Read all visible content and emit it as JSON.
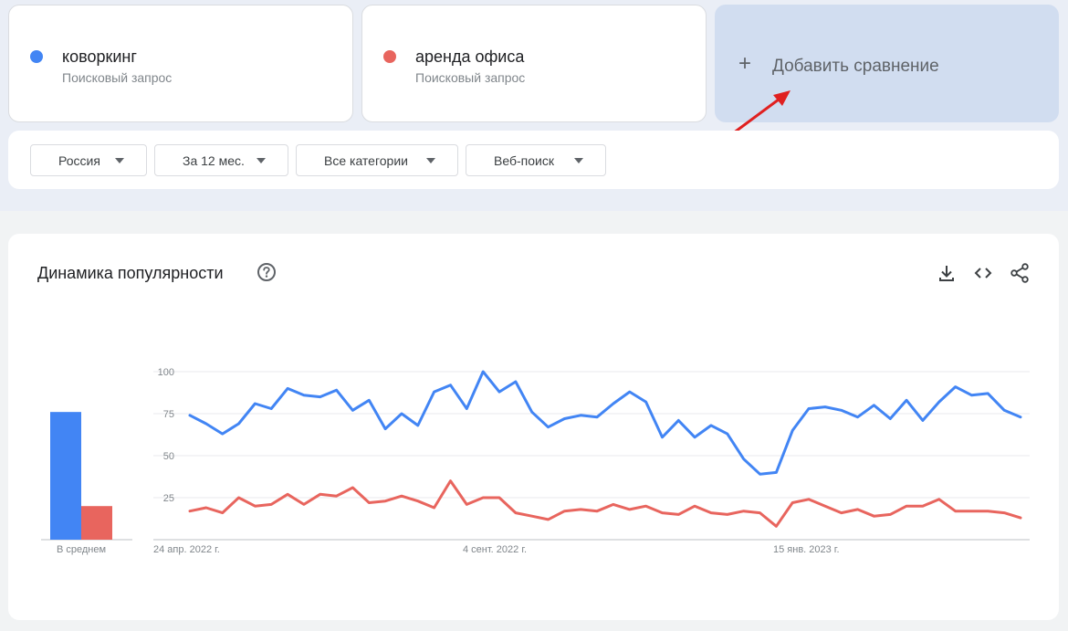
{
  "terms": [
    {
      "label": "коворкинг",
      "sublabel": "Поисковый запрос",
      "color": "#4285f4"
    },
    {
      "label": "аренда офиса",
      "sublabel": "Поисковый запрос",
      "color": "#e8655e"
    }
  ],
  "add_comparison": {
    "plus": "+",
    "label": "Добавить сравнение"
  },
  "filters": {
    "region": "Россия",
    "period": "За 12 мес.",
    "category": "Все категории",
    "search_type": "Веб-поиск"
  },
  "chart_panel": {
    "title": "Динамика популярности",
    "icons": [
      "help-icon",
      "download-icon",
      "embed-icon",
      "share-icon"
    ]
  },
  "colors": {
    "blue": "#4285f4",
    "red": "#e8655e",
    "annotation": "#e02020"
  },
  "chart_data": [
    {
      "type": "bar",
      "categories": [
        "В среднем"
      ],
      "series": [
        {
          "name": "коворкинг",
          "values": [
            76
          ]
        },
        {
          "name": "аренда офиса",
          "values": [
            20
          ]
        }
      ],
      "ylim": [
        0,
        100
      ],
      "xlabel": "В среднем"
    },
    {
      "type": "line",
      "x_tick_labels": [
        "24 апр. 2022 г.",
        "4 сент. 2022 г.",
        "15 янв. 2023 г."
      ],
      "y_ticks": [
        "100",
        "75",
        "50",
        "25"
      ],
      "ylim": [
        0,
        100
      ],
      "grid": true,
      "series": [
        {
          "name": "коворкинг",
          "values": [
            74,
            69,
            63,
            69,
            81,
            78,
            90,
            86,
            85,
            89,
            77,
            83,
            66,
            75,
            68,
            88,
            92,
            78,
            100,
            88,
            94,
            76,
            67,
            72,
            74,
            73,
            81,
            88,
            82,
            61,
            71,
            61,
            68,
            63,
            48,
            39,
            40,
            65,
            78,
            79,
            77,
            73,
            80,
            72,
            83,
            71,
            82,
            91,
            86,
            87,
            77,
            73
          ]
        },
        {
          "name": "аренда офиса",
          "values": [
            17,
            19,
            16,
            25,
            20,
            21,
            27,
            21,
            27,
            26,
            31,
            22,
            23,
            26,
            23,
            19,
            35,
            21,
            25,
            25,
            16,
            14,
            12,
            17,
            18,
            17,
            21,
            18,
            20,
            16,
            15,
            20,
            16,
            15,
            17,
            16,
            8,
            22,
            24,
            20,
            16,
            18,
            14,
            15,
            20,
            20,
            24,
            17,
            17,
            17,
            16,
            13
          ]
        }
      ]
    }
  ]
}
